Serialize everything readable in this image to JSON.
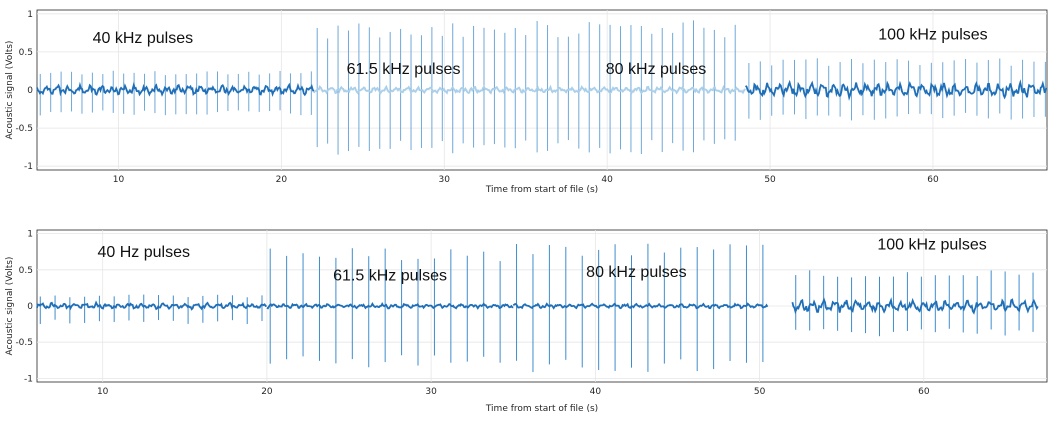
{
  "chart_data": [
    {
      "type": "line",
      "xlabel": "Time from start of file (s)",
      "ylabel": "Acoustic signal (Volts)",
      "xlim": [
        5,
        67
      ],
      "ylim": [
        -1.05,
        1.05
      ],
      "xticks": [
        10,
        20,
        30,
        40,
        50,
        60
      ],
      "yticks": [
        1,
        0.5,
        0,
        -0.5,
        -1
      ],
      "ytick_labels": [
        "1",
        "0.5",
        "0",
        "-0.5",
        "-1"
      ],
      "grid": true,
      "colors": {
        "signal": "#1f6fb8",
        "pulses": "#6fa8d8",
        "pale": "#a9cfea"
      },
      "annotations": [
        {
          "text": "40 kHz pulses",
          "x": 11.5,
          "y": 0.62
        },
        {
          "text": "61.5 kHz pulses",
          "x": 27.5,
          "y": 0.21
        },
        {
          "text": "80 kHz pulses",
          "x": 43.0,
          "y": 0.21
        },
        {
          "text": "100 kHz pulses",
          "x": 60.0,
          "y": 0.66
        }
      ],
      "segments": [
        {
          "label": "40 kHz",
          "t_start": 5.0,
          "t_end": 22.0,
          "period": 0.64,
          "pulse_min": -0.35,
          "pulse_max": 0.26,
          "noise": 0.06,
          "tone": "dark"
        },
        {
          "label": "61.5 kHz",
          "t_start": 22.0,
          "t_end": 35.5,
          "period": 0.64,
          "pulse_min": -0.85,
          "pulse_max": 0.88,
          "noise": 0.04,
          "tone": "pale"
        },
        {
          "label": "80 kHz",
          "t_start": 35.5,
          "t_end": 48.5,
          "period": 0.64,
          "pulse_min": -0.85,
          "pulse_max": 0.92,
          "noise": 0.04,
          "tone": "pale"
        },
        {
          "label": "100 kHz",
          "t_start": 48.5,
          "t_end": 67.0,
          "period": 0.7,
          "pulse_min": -0.4,
          "pulse_max": 0.42,
          "noise": 0.09,
          "tone": "dark"
        }
      ]
    },
    {
      "type": "line",
      "xlabel": "Time from start of file (s)",
      "ylabel": "Acoustic signal (Volts)",
      "xlim": [
        6,
        67.5
      ],
      "ylim": [
        -1.05,
        1.05
      ],
      "xticks": [
        10,
        20,
        30,
        40,
        50,
        60
      ],
      "yticks": [
        1,
        0.5,
        0,
        -0.5,
        -1
      ],
      "ytick_labels": [
        "1",
        "0.5",
        "0",
        "-0.5",
        "-1"
      ],
      "grid": true,
      "colors": {
        "signal": "#1f6fb8",
        "pulses": "#3f8ccc",
        "pale": "#3f8ccc"
      },
      "annotations": [
        {
          "text": "40 Hz pulses",
          "x": 12.5,
          "y": 0.68
        },
        {
          "text": "61.5 kHz pulses",
          "x": 27.5,
          "y": 0.35
        },
        {
          "text": "80 kHz pulses",
          "x": 42.5,
          "y": 0.4
        },
        {
          "text": "100 kHz pulses",
          "x": 60.5,
          "y": 0.78
        }
      ],
      "segments": [
        {
          "label": "40 Hz",
          "t_start": 6.0,
          "t_end": 20.0,
          "period": 0.9,
          "pulse_min": -0.25,
          "pulse_max": 0.16,
          "noise": 0.04,
          "tone": "dark"
        },
        {
          "label": "61.5 kHz",
          "t_start": 20.0,
          "t_end": 35.0,
          "period": 1.0,
          "pulse_min": -0.88,
          "pulse_max": 0.8,
          "noise": 0.03,
          "tone": "dark"
        },
        {
          "label": "80 kHz",
          "t_start": 35.0,
          "t_end": 50.5,
          "period": 1.0,
          "pulse_min": -0.92,
          "pulse_max": 0.92,
          "noise": 0.03,
          "tone": "dark"
        },
        {
          "label": "100 kHz",
          "t_start": 52.0,
          "t_end": 67.0,
          "period": 0.85,
          "pulse_min": -0.42,
          "pulse_max": 0.5,
          "noise": 0.08,
          "tone": "dark"
        }
      ]
    }
  ]
}
